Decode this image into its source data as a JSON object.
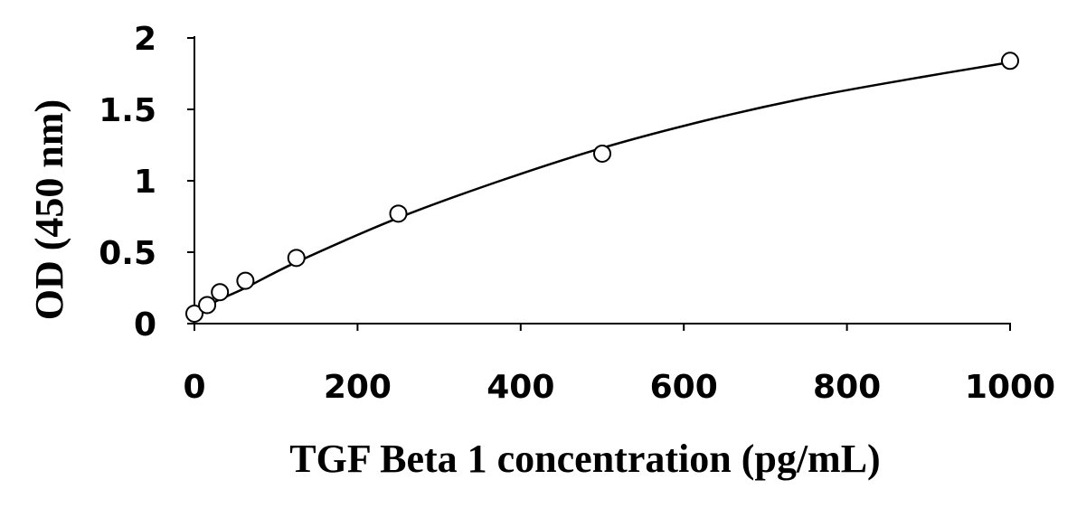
{
  "chart_data": {
    "type": "scatter",
    "title": "",
    "xlabel": "TGF Beta 1 concentration (pg/mL)",
    "ylabel": "OD (450 nm)",
    "xlim": [
      0,
      1000
    ],
    "ylim": [
      0,
      2
    ],
    "xticks": [
      0,
      200,
      400,
      600,
      800,
      1000
    ],
    "yticks": [
      0,
      0.5,
      1,
      1.5,
      2
    ],
    "xtick_labels": [
      "0",
      "200",
      "400",
      "600",
      "800",
      "1000"
    ],
    "ytick_labels": [
      "0",
      "0.5",
      "1",
      "1.5",
      "2"
    ],
    "grid": false,
    "legend": "none",
    "series": [
      {
        "marker": "open-circle",
        "x": [
          0,
          15.6,
          31.25,
          62.5,
          125,
          250,
          500,
          1000
        ],
        "y": [
          0.07,
          0.13,
          0.22,
          0.3,
          0.46,
          0.77,
          1.19,
          1.84
        ]
      }
    ],
    "fit": {
      "type": "smooth-curve",
      "x": [
        0,
        15.6,
        31.25,
        62.5,
        125,
        250,
        375,
        500,
        625,
        750,
        875,
        1000
      ],
      "y": [
        0.07,
        0.12,
        0.17,
        0.25,
        0.43,
        0.74,
        1.0,
        1.23,
        1.42,
        1.58,
        1.71,
        1.83
      ]
    }
  }
}
